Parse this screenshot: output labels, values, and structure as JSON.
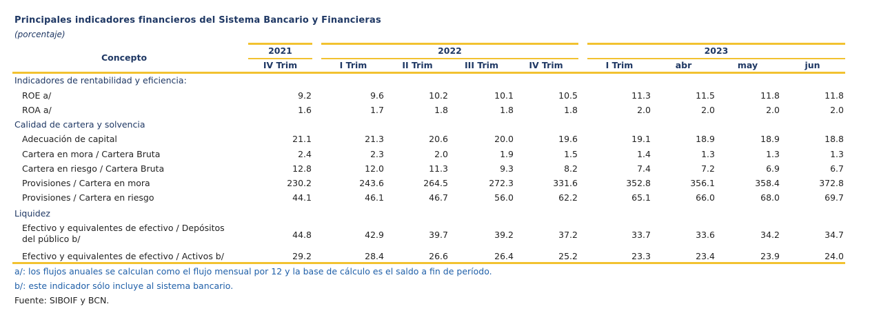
{
  "title": "Principales indicadores financieros del Sistema Bancario y Financieras",
  "subtitle": "(porcentaje)",
  "header": {
    "concept_label": "Concepto",
    "years": [
      "2021",
      "2022",
      "2023"
    ],
    "periods": [
      "IV Trim",
      "I Trim",
      "II Trim",
      "III Trim",
      "IV Trim",
      "I Trim",
      "abr",
      "may",
      "jun"
    ]
  },
  "sections": [
    {
      "label": "Indicadores de rentabilidad y eficiencia:",
      "rows": [
        {
          "label": "ROE a/",
          "values": [
            "9.2",
            "9.6",
            "10.2",
            "10.1",
            "10.5",
            "11.3",
            "11.5",
            "11.8",
            "11.8"
          ]
        },
        {
          "label": "ROA a/",
          "values": [
            "1.6",
            "1.7",
            "1.8",
            "1.8",
            "1.8",
            "2.0",
            "2.0",
            "2.0",
            "2.0"
          ]
        }
      ]
    },
    {
      "label": "Calidad de cartera y solvencia",
      "rows": [
        {
          "label": "Adecuación de capital",
          "values": [
            "21.1",
            "21.3",
            "20.6",
            "20.0",
            "19.6",
            "19.1",
            "18.9",
            "18.9",
            "18.8"
          ]
        },
        {
          "label": "Cartera en mora / Cartera Bruta",
          "values": [
            "2.4",
            "2.3",
            "2.0",
            "1.9",
            "1.5",
            "1.4",
            "1.3",
            "1.3",
            "1.3"
          ]
        },
        {
          "label": "Cartera en riesgo / Cartera Bruta",
          "values": [
            "12.8",
            "12.0",
            "11.3",
            "9.3",
            "8.2",
            "7.4",
            "7.2",
            "6.9",
            "6.7"
          ]
        },
        {
          "label": "Provisiones / Cartera en mora",
          "values": [
            "230.2",
            "243.6",
            "264.5",
            "272.3",
            "331.6",
            "352.8",
            "356.1",
            "358.4",
            "372.8"
          ]
        },
        {
          "label": "Provisiones / Cartera en riesgo",
          "values": [
            "44.1",
            "46.1",
            "46.7",
            "56.0",
            "62.2",
            "65.1",
            "66.0",
            "68.0",
            "69.7"
          ]
        }
      ]
    },
    {
      "label": "Liquidez",
      "rows": [
        {
          "label_line1": "Efectivo y equivalentes de efectivo / Depósitos",
          "label_line2": "del público b/",
          "values": [
            "44.8",
            "42.9",
            "39.7",
            "39.2",
            "37.2",
            "33.7",
            "33.6",
            "34.2",
            "34.7"
          ]
        },
        {
          "label": "Efectivo y equivalentes de efectivo / Activos b/",
          "values": [
            "29.2",
            "28.4",
            "26.6",
            "26.4",
            "25.2",
            "23.3",
            "23.4",
            "23.9",
            "24.0"
          ]
        }
      ]
    }
  ],
  "notes": [
    "a/: los flujos anuales se calculan como el flujo mensual por 12 y la base de cálculo es el saldo a fin de período.",
    "b/: este indicador sólo incluye al sistema bancario."
  ],
  "source": "Fuente: SIBOIF y BCN."
}
